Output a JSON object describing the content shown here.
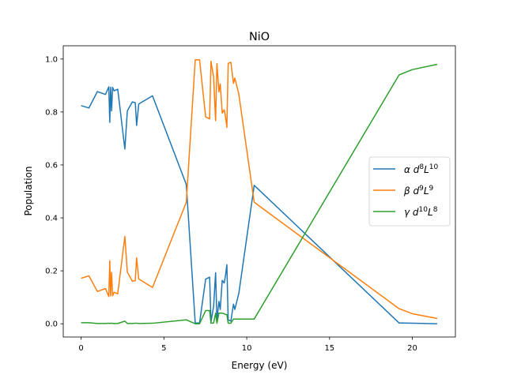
{
  "chart_data": {
    "type": "line",
    "title": "NiO",
    "xlabel": "Energy (eV)",
    "ylabel": "Population",
    "xlim": [
      -1.08,
      22.6
    ],
    "ylim": [
      -0.05,
      1.05
    ],
    "xticks": [
      0,
      5,
      10,
      15,
      20
    ],
    "xtick_labels": [
      "0",
      "5",
      "10",
      "15",
      "20"
    ],
    "yticks": [
      0.0,
      0.2,
      0.4,
      0.6,
      0.8,
      1.0
    ],
    "ytick_labels": [
      "0.0",
      "0.2",
      "0.4",
      "0.6",
      "0.8",
      "1.0"
    ],
    "grid": false,
    "legend_position": "center-right",
    "x": [
      0,
      0.47,
      0.98,
      1.47,
      1.67,
      1.73,
      1.78,
      1.84,
      1.9,
      1.99,
      2.21,
      2.64,
      2.79,
      3.09,
      3.27,
      3.35,
      3.48,
      3.56,
      4.31,
      6.35,
      6.89,
      7.15,
      7.52,
      7.76,
      7.84,
      8.0,
      8.12,
      8.2,
      8.32,
      8.4,
      8.52,
      8.64,
      8.72,
      8.8,
      8.88,
      9.04,
      9.2,
      9.28,
      9.52,
      10.45,
      19.2,
      20.0,
      21.5
    ],
    "series": [
      {
        "name": "α d8L10",
        "greek": "α",
        "base": "d",
        "sup1": "8",
        "mid": "L",
        "sup2": "10",
        "color": "#1f77b4",
        "values": [
          0.824,
          0.815,
          0.877,
          0.866,
          0.895,
          0.761,
          0.893,
          0.804,
          0.893,
          0.88,
          0.886,
          0.66,
          0.804,
          0.838,
          0.835,
          0.749,
          0.83,
          0.833,
          0.861,
          0.526,
          0.003,
          0.003,
          0.169,
          0.176,
          0.007,
          0.065,
          0.193,
          0.015,
          0.084,
          0.054,
          0.164,
          0.154,
          0.184,
          0.223,
          0.015,
          0.01,
          0.074,
          0.054,
          0.114,
          0.523,
          0.003,
          0.002,
          0.0
        ]
      },
      {
        "name": "β d9L9",
        "greek": "β",
        "base": "d",
        "sup1": "9",
        "mid": "L",
        "sup2": "9",
        "color": "#ff7f0e",
        "values": [
          0.172,
          0.181,
          0.122,
          0.133,
          0.103,
          0.238,
          0.105,
          0.194,
          0.106,
          0.119,
          0.113,
          0.33,
          0.195,
          0.161,
          0.163,
          0.249,
          0.169,
          0.166,
          0.137,
          0.459,
          0.997,
          0.997,
          0.781,
          0.774,
          0.991,
          0.932,
          0.767,
          0.983,
          0.876,
          0.906,
          0.796,
          0.808,
          0.781,
          0.742,
          0.983,
          0.988,
          0.908,
          0.928,
          0.868,
          0.459,
          0.057,
          0.038,
          0.02
        ]
      },
      {
        "name": "γ d10L8",
        "greek": "γ",
        "base": "d",
        "sup1": "10",
        "mid": "L",
        "sup2": "8",
        "color": "#2ca02c",
        "values": [
          0.004,
          0.004,
          0.001,
          0.001,
          0.002,
          0.001,
          0.002,
          0.002,
          0.001,
          0.001,
          0.001,
          0.01,
          0.001,
          0.001,
          0.002,
          0.002,
          0.001,
          0.001,
          0.002,
          0.015,
          0.0,
          0.0,
          0.05,
          0.05,
          0.002,
          0.003,
          0.04,
          0.002,
          0.04,
          0.04,
          0.04,
          0.038,
          0.035,
          0.035,
          0.002,
          0.002,
          0.018,
          0.018,
          0.018,
          0.018,
          0.94,
          0.96,
          0.98
        ]
      }
    ]
  }
}
